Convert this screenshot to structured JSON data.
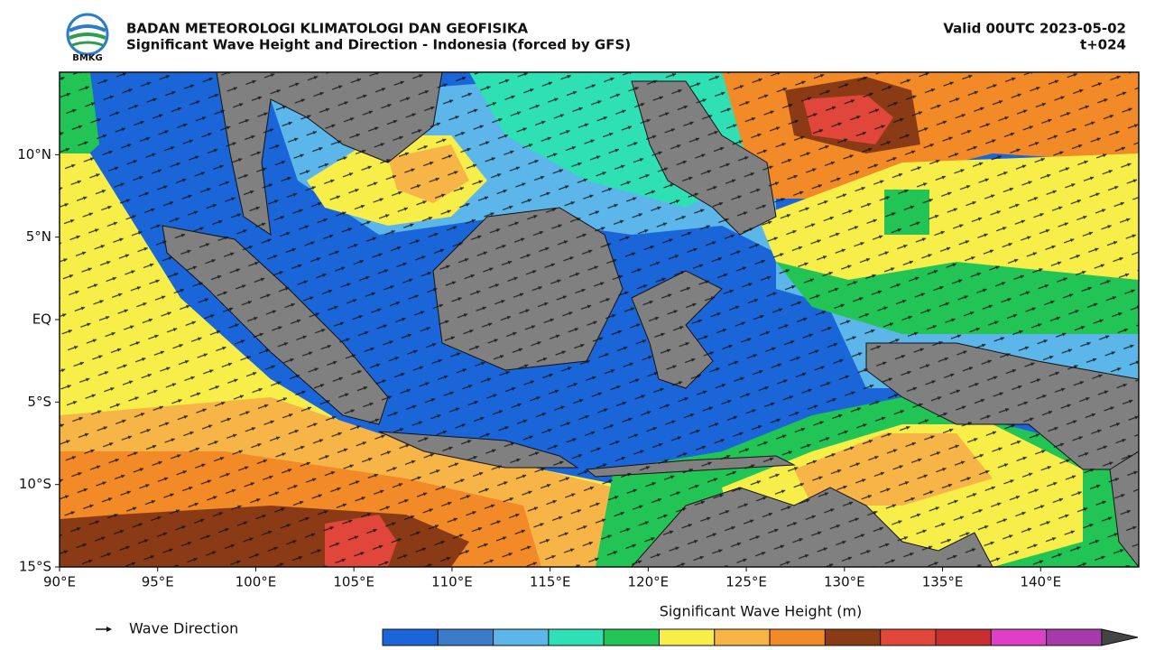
{
  "header": {
    "logo_text": "BMKG",
    "title": "BADAN METEOROLOGI KLIMATOLOGI DAN GEOFISIKA",
    "subtitle": "Significant Wave Height and Direction - Indonesia (forced by GFS)",
    "valid": "Valid 00UTC 2023-05-02",
    "lead": "t+024"
  },
  "map": {
    "xlim": [
      90,
      145
    ],
    "ylim": [
      -15,
      15
    ],
    "lon_ticks": [
      {
        "value": 90,
        "label": "90°E"
      },
      {
        "value": 95,
        "label": "95°E"
      },
      {
        "value": 100,
        "label": "100°E"
      },
      {
        "value": 105,
        "label": "105°E"
      },
      {
        "value": 110,
        "label": "110°E"
      },
      {
        "value": 115,
        "label": "115°E"
      },
      {
        "value": 120,
        "label": "120°E"
      },
      {
        "value": 125,
        "label": "125°E"
      },
      {
        "value": 130,
        "label": "130°E"
      },
      {
        "value": 135,
        "label": "135°E"
      },
      {
        "value": 140,
        "label": "140°E"
      }
    ],
    "lat_ticks": [
      {
        "value": 10,
        "label": "10°N"
      },
      {
        "value": 5,
        "label": "5°N"
      },
      {
        "value": 0,
        "label": "EQ"
      },
      {
        "value": -5,
        "label": "5°S"
      },
      {
        "value": -10,
        "label": "10°S"
      },
      {
        "value": -15,
        "label": "15°S"
      }
    ]
  },
  "legend": {
    "label": "Wave Direction"
  },
  "colorbar": {
    "title": "Significant Wave Height (m)",
    "colors": [
      "#1a66d9",
      "#3a7cc8",
      "#5cb6ea",
      "#2ee0b4",
      "#22c455",
      "#f7ee4a",
      "#f7b547",
      "#f28a27",
      "#8a3b16",
      "#e0463a",
      "#c8302f",
      "#dd3fc6",
      "#a63aa8"
    ],
    "extend_color": "#444444"
  }
}
